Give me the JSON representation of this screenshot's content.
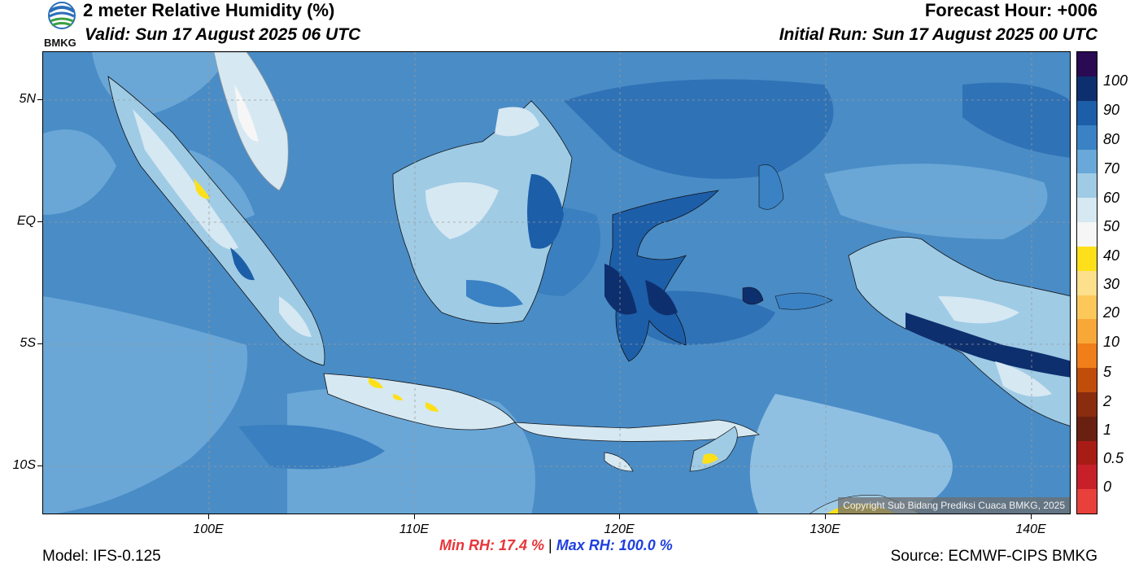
{
  "header": {
    "title": "2 meter Relative Humidity (%)",
    "valid": "Valid: Sun 17 August 2025 06 UTC",
    "forecast_hour": "Forecast Hour: +006",
    "initial_run": "Initial Run: Sun 17 August 2025 00 UTC",
    "logo_text": "BMKG"
  },
  "map": {
    "copyright": "Copyright Sub Bidang Prediksi Cuaca BMKG, 2025",
    "ocean_color": "#4a8cc6",
    "y_axis_labels": [
      "5N",
      "EQ",
      "5S",
      "10S"
    ],
    "x_axis_labels": [
      "100E",
      "110E",
      "120E",
      "130E",
      "140E"
    ]
  },
  "colorbar": {
    "levels": [
      "0",
      "0.5",
      "1",
      "2",
      "5",
      "10",
      "20",
      "30",
      "40",
      "50",
      "60",
      "70",
      "80",
      "90",
      "100"
    ],
    "colors": [
      "#e8403a",
      "#c8202a",
      "#a81c16",
      "#6a2010",
      "#8a2c0e",
      "#c14d0a",
      "#f07e1a",
      "#f8a838",
      "#fcc85a",
      "#fde08c",
      "#fde01a",
      "#f6f6f6",
      "#d6e8f2",
      "#9fcbe5",
      "#69a8d8",
      "#3a82c4",
      "#1d5ea8",
      "#0e2f6e",
      "#2a0a52"
    ]
  },
  "footer": {
    "model": "Model: IFS-0.125",
    "min_rh": "Min RH:  17.4 %",
    "separator": "|",
    "max_rh": "Max RH: 100.0 %",
    "source": "Source: ECMWF-CIPS BMKG"
  }
}
